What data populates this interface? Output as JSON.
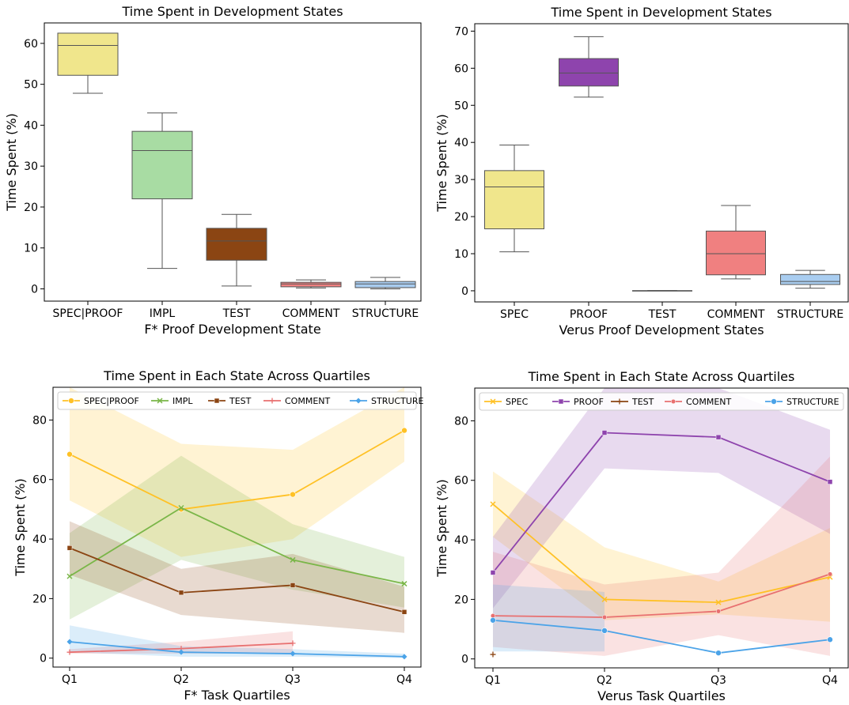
{
  "chart_data": [
    {
      "type": "box",
      "title": "Time Spent in Development States",
      "xlabel": "F* Proof Development State",
      "ylabel": "Time Spent (%)",
      "ylim": [
        -3,
        65
      ],
      "yticks": [
        0,
        10,
        20,
        30,
        40,
        50,
        60
      ],
      "categories": [
        "SPEC|PROOF",
        "IMPL",
        "TEST",
        "COMMENT",
        "STRUCTURE"
      ],
      "colors": [
        "#f0e68c",
        "#a8dca3",
        "#8b4513",
        "#f08080",
        "#a9cdf0"
      ],
      "boxes": [
        {
          "min": 47.8,
          "q1": 52.2,
          "median": 59.5,
          "q3": 62.5,
          "max": 62.5
        },
        {
          "min": 5.0,
          "q1": 22.0,
          "median": 33.8,
          "q3": 38.5,
          "max": 43.0
        },
        {
          "min": 0.7,
          "q1": 7.0,
          "median": 11.7,
          "q3": 14.8,
          "max": 18.2
        },
        {
          "min": 0.2,
          "q1": 0.5,
          "median": 1.2,
          "q3": 1.6,
          "max": 2.2
        },
        {
          "min": 0.0,
          "q1": 0.3,
          "median": 1.2,
          "q3": 1.8,
          "max": 2.8
        }
      ]
    },
    {
      "type": "box",
      "title": "Time Spent in Development States",
      "xlabel": "Verus Proof Development States",
      "ylabel": "Time Spent (%)",
      "ylim": [
        -3,
        72
      ],
      "yticks": [
        0,
        10,
        20,
        30,
        40,
        50,
        60,
        70
      ],
      "categories": [
        "SPEC",
        "PROOF",
        "TEST",
        "COMMENT",
        "STRUCTURE"
      ],
      "colors": [
        "#f0e68c",
        "#8e44ad",
        "#8b4513",
        "#f08080",
        "#a9cdf0"
      ],
      "boxes": [
        {
          "min": 10.5,
          "q1": 16.7,
          "median": 28.0,
          "q3": 32.4,
          "max": 39.3
        },
        {
          "min": 52.2,
          "q1": 55.2,
          "median": 58.7,
          "q3": 62.6,
          "max": 68.5
        },
        {
          "min": 0.0,
          "q1": 0.0,
          "median": 0.0,
          "q3": 0.05,
          "max": 0.1
        },
        {
          "min": 3.2,
          "q1": 4.3,
          "median": 10.0,
          "q3": 16.1,
          "max": 23.0
        },
        {
          "min": 0.7,
          "q1": 1.7,
          "median": 2.5,
          "q3": 4.4,
          "max": 5.5
        }
      ]
    },
    {
      "type": "line",
      "title": "Time Spent in Each State Across Quartiles",
      "xlabel": "F* Task Quartiles",
      "ylabel": "Time Spent (%)",
      "ylim": [
        -3,
        91
      ],
      "yticks": [
        0,
        20,
        40,
        60,
        80
      ],
      "categories": [
        "Q1",
        "Q2",
        "Q3",
        "Q4"
      ],
      "legend": "top",
      "series": [
        {
          "name": "SPEC|PROOF",
          "color": "#ffc125",
          "marker": "circle",
          "values": [
            68.5,
            50.0,
            55.0,
            76.5
          ],
          "band_low": [
            53,
            34,
            40,
            66
          ],
          "band_high": [
            91,
            72,
            70,
            91
          ]
        },
        {
          "name": "IMPL",
          "color": "#7ab648",
          "marker": "x",
          "values": [
            27.5,
            50.5,
            33.0,
            25.0
          ],
          "band_low": [
            13,
            33,
            23,
            17
          ],
          "band_high": [
            42,
            68,
            45,
            34
          ]
        },
        {
          "name": "TEST",
          "color": "#8b4513",
          "marker": "square",
          "values": [
            37.0,
            22.0,
            24.5,
            15.5
          ],
          "band_low": [
            28,
            14.5,
            11.5,
            8.5
          ],
          "band_high": [
            46,
            30,
            35,
            24
          ]
        },
        {
          "name": "COMMENT",
          "color": "#e87070",
          "marker": "plus",
          "values": [
            2.0,
            3.2,
            5.0,
            null
          ],
          "band_low": [
            1.5,
            1.5,
            1.5,
            null
          ],
          "band_high": [
            3.0,
            5.5,
            9.0,
            null
          ]
        },
        {
          "name": "STRUCTURE",
          "color": "#4ba3e8",
          "marker": "diamond",
          "values": [
            5.5,
            2.0,
            1.5,
            0.5
          ],
          "band_low": [
            2.0,
            0.5,
            0.5,
            0.0
          ],
          "band_high": [
            11.0,
            4.0,
            3.0,
            1.5
          ]
        }
      ]
    },
    {
      "type": "line",
      "title": "Time Spent in Each State Across Quartiles",
      "xlabel": "Verus Task Quartiles",
      "ylabel": "Time Spent (%)",
      "ylim": [
        -3,
        91
      ],
      "yticks": [
        0,
        20,
        40,
        60,
        80
      ],
      "categories": [
        "Q1",
        "Q2",
        "Q3",
        "Q4"
      ],
      "legend": "top",
      "series": [
        {
          "name": "SPEC",
          "color": "#ffc125",
          "marker": "x",
          "values": [
            52.0,
            20.0,
            19.0,
            27.5
          ],
          "band_low": [
            41,
            13,
            15,
            12.5
          ],
          "band_high": [
            63,
            37.5,
            26,
            44
          ]
        },
        {
          "name": "PROOF",
          "color": "#8e44ad",
          "marker": "square",
          "values": [
            29.0,
            76.0,
            74.5,
            59.5
          ],
          "band_low": [
            17,
            64,
            62.5,
            42
          ],
          "band_high": [
            41,
            91,
            91,
            77
          ]
        },
        {
          "name": "TEST",
          "color": "#8b4513",
          "marker": "plus",
          "values": [
            1.5,
            null,
            null,
            null
          ],
          "band_low": [
            1.5,
            null,
            null,
            null
          ],
          "band_high": [
            1.5,
            null,
            null,
            null
          ]
        },
        {
          "name": "COMMENT",
          "color": "#e87070",
          "marker": "circle-small",
          "values": [
            14.5,
            14.0,
            16.0,
            28.5
          ],
          "band_low": [
            4,
            1,
            8,
            1
          ],
          "band_high": [
            36,
            25,
            29,
            68
          ]
        },
        {
          "name": "STRUCTURE",
          "color": "#4ba3e8",
          "marker": "circle",
          "values": [
            13.0,
            9.5,
            2.0,
            6.5
          ],
          "band_low": [
            2.5,
            2.5,
            null,
            null
          ],
          "band_high": [
            25,
            22.5,
            null,
            null
          ]
        }
      ]
    }
  ]
}
